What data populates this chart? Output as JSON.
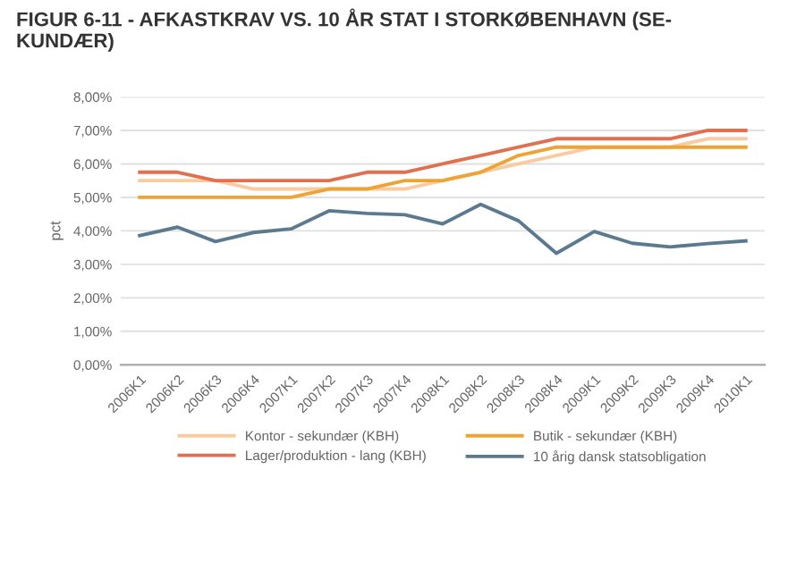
{
  "chart_data": {
    "type": "line",
    "title": "FIGUR 6-11 - AFKASTKRAV VS. 10 ÅR STAT I STORKØBENHAVN (SE-\nKUNDÆR)",
    "ylabel": "pct",
    "categories": [
      "2006K1",
      "2006K2",
      "2006K3",
      "2006K4",
      "2007K1",
      "2007K2",
      "2007K3",
      "2007K4",
      "2008K1",
      "2008K2",
      "2008K3",
      "2008K4",
      "2009K1",
      "2009K2",
      "2009K3",
      "2009K4",
      "2010K1"
    ],
    "series": [
      {
        "name": "Kontor - sekundær (KBH)",
        "color": "#f8cba0",
        "values": [
          5.5,
          5.5,
          5.5,
          5.25,
          5.25,
          5.25,
          5.25,
          5.25,
          5.5,
          5.75,
          6.0,
          6.25,
          6.5,
          6.5,
          6.5,
          6.75,
          6.75
        ]
      },
      {
        "name": "Butik - sekundær (KBH)",
        "color": "#eea435",
        "values": [
          5.0,
          5.0,
          5.0,
          5.0,
          5.0,
          5.25,
          5.25,
          5.5,
          5.5,
          5.75,
          6.25,
          6.5,
          6.5,
          6.5,
          6.5,
          6.5,
          6.5
        ]
      },
      {
        "name": "Lager/produktion - lang (KBH)",
        "color": "#e07050",
        "values": [
          5.75,
          5.75,
          5.5,
          5.5,
          5.5,
          5.5,
          5.75,
          5.75,
          6.0,
          6.25,
          6.5,
          6.75,
          6.75,
          6.75,
          6.75,
          7.0,
          7.0
        ]
      },
      {
        "name": "10 årig dansk statsobligation",
        "color": "#5b7a90",
        "values": [
          3.86,
          4.11,
          3.68,
          3.95,
          4.06,
          4.6,
          4.52,
          4.48,
          4.21,
          4.79,
          4.3,
          3.33,
          3.98,
          3.63,
          3.52,
          3.62,
          3.7
        ]
      }
    ],
    "ylim": [
      0,
      8
    ],
    "yticks": [
      {
        "value": 0,
        "label": "0,00%"
      },
      {
        "value": 1,
        "label": "1,00%"
      },
      {
        "value": 2,
        "label": "2,00%"
      },
      {
        "value": 3,
        "label": "3,00%"
      },
      {
        "value": 4,
        "label": "4,00%"
      },
      {
        "value": 5,
        "label": "5,00%"
      },
      {
        "value": 6,
        "label": "6,00%"
      },
      {
        "value": 7,
        "label": "7,00%"
      },
      {
        "value": 8,
        "label": "8,00%"
      }
    ],
    "grid": "y",
    "legend": "bottom",
    "marker": "none",
    "line_style": "solid"
  }
}
